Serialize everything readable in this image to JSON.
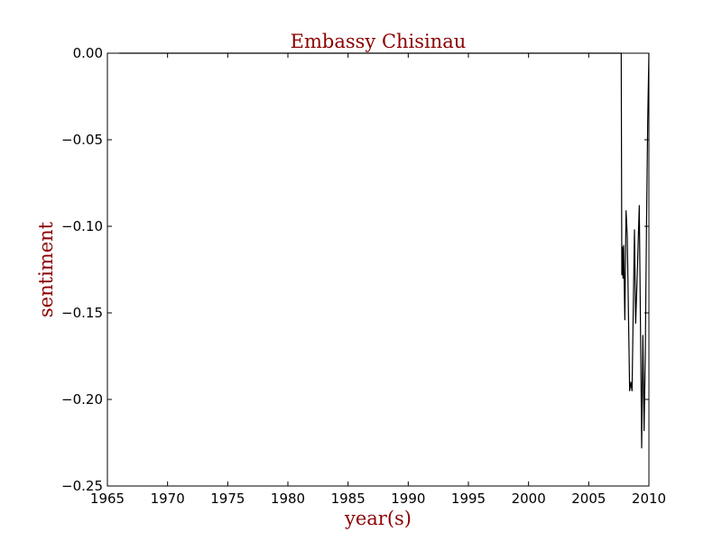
{
  "chart_data": {
    "type": "line",
    "title": "Embassy Chisinau",
    "xlabel": "year(s)",
    "ylabel": "sentiment",
    "xlim": [
      1965,
      2010
    ],
    "ylim": [
      -0.25,
      0.0
    ],
    "xticks": [
      1965,
      1970,
      1975,
      1980,
      1985,
      1990,
      1995,
      2000,
      2005,
      2010
    ],
    "xtick_labels": [
      "1965",
      "1970",
      "1975",
      "1980",
      "1985",
      "1990",
      "1995",
      "2000",
      "2005",
      "2010"
    ],
    "yticks": [
      0.0,
      -0.05,
      -0.1,
      -0.15,
      -0.2,
      -0.25
    ],
    "ytick_labels": [
      "0.00",
      "−0.05",
      "−0.10",
      "−0.15",
      "−0.20",
      "−0.25"
    ],
    "grid": false,
    "legend": "none",
    "colors": {
      "line": "#000000",
      "title": "#8b0000",
      "axis_labels": "#8b0000"
    },
    "series": [
      {
        "x": [
          1966.0,
          2007.7,
          2007.75,
          2007.8,
          2007.85,
          2007.9,
          2008.0,
          2008.1,
          2008.2,
          2008.4,
          2008.5,
          2008.6,
          2008.8,
          2008.9,
          2009.0,
          2009.2,
          2009.3,
          2009.4,
          2009.5,
          2009.6,
          2009.7,
          2009.8,
          2009.9,
          2010.0
        ],
        "y": [
          0.0,
          0.0,
          -0.128,
          -0.112,
          -0.13,
          -0.111,
          -0.154,
          -0.091,
          -0.105,
          -0.195,
          -0.19,
          -0.195,
          -0.102,
          -0.156,
          -0.135,
          -0.088,
          -0.157,
          -0.228,
          -0.163,
          -0.218,
          -0.175,
          -0.1,
          -0.04,
          0.0
        ]
      }
    ]
  }
}
